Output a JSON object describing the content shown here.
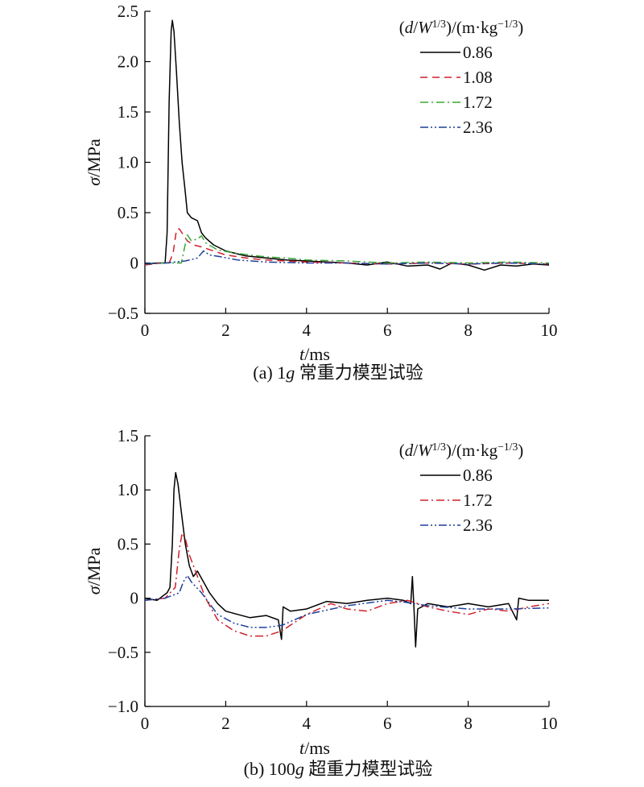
{
  "chart_data": [
    {
      "type": "line",
      "caption": "(a) 1g 常重力模型试验",
      "xlabel": "t/ms",
      "ylabel": "σ/MPa",
      "xlim": [
        0,
        10
      ],
      "ylim": [
        -0.5,
        2.5
      ],
      "xticks": [
        0,
        2,
        4,
        6,
        8,
        10
      ],
      "yticks": [
        -0.5,
        0,
        0.5,
        1.0,
        1.5,
        2.0,
        2.5
      ],
      "ytick_labels": [
        "−0.5",
        "0",
        "0.5",
        "1.0",
        "1.5",
        "2.0",
        "2.5"
      ],
      "legend_title": "(d/W1/3)/(m·kg−1/3)",
      "legend_position": "top-right",
      "series": [
        {
          "name": "0.86",
          "color": "#000000",
          "dash": "",
          "points": [
            [
              0,
              -0.01
            ],
            [
              0.3,
              0.0
            ],
            [
              0.5,
              0.0
            ],
            [
              0.55,
              0.3
            ],
            [
              0.6,
              1.6
            ],
            [
              0.65,
              2.3
            ],
            [
              0.68,
              2.41
            ],
            [
              0.72,
              2.3
            ],
            [
              0.78,
              1.9
            ],
            [
              0.85,
              1.4
            ],
            [
              0.92,
              1.0
            ],
            [
              1.0,
              0.7
            ],
            [
              1.05,
              0.5
            ],
            [
              1.15,
              0.45
            ],
            [
              1.3,
              0.42
            ],
            [
              1.4,
              0.3
            ],
            [
              1.5,
              0.25
            ],
            [
              1.7,
              0.18
            ],
            [
              2.0,
              0.12
            ],
            [
              2.5,
              0.07
            ],
            [
              3.0,
              0.05
            ],
            [
              3.5,
              0.03
            ],
            [
              4.0,
              0.02
            ],
            [
              5.0,
              0.0
            ],
            [
              5.5,
              -0.02
            ],
            [
              6.0,
              0.01
            ],
            [
              6.5,
              -0.03
            ],
            [
              7.0,
              -0.02
            ],
            [
              7.3,
              -0.06
            ],
            [
              7.6,
              0.0
            ],
            [
              8.0,
              -0.02
            ],
            [
              8.4,
              -0.07
            ],
            [
              8.8,
              -0.02
            ],
            [
              9.2,
              -0.03
            ],
            [
              9.6,
              -0.01
            ],
            [
              10.0,
              -0.02
            ]
          ]
        },
        {
          "name": "1.08",
          "color": "#d0202a",
          "dash": "9,6",
          "points": [
            [
              0,
              -0.02
            ],
            [
              0.4,
              0.0
            ],
            [
              0.6,
              0.0
            ],
            [
              0.7,
              0.1
            ],
            [
              0.78,
              0.33
            ],
            [
              0.85,
              0.34
            ],
            [
              0.95,
              0.28
            ],
            [
              1.05,
              0.22
            ],
            [
              1.2,
              0.18
            ],
            [
              1.4,
              0.16
            ],
            [
              1.7,
              0.12
            ],
            [
              2.0,
              0.08
            ],
            [
              2.5,
              0.05
            ],
            [
              3.0,
              0.03
            ],
            [
              4.0,
              0.01
            ],
            [
              5.0,
              0.0
            ],
            [
              6.0,
              -0.01
            ],
            [
              7.0,
              0.0
            ],
            [
              8.0,
              -0.01
            ],
            [
              9.0,
              0.0
            ],
            [
              10.0,
              -0.01
            ]
          ]
        },
        {
          "name": "1.72",
          "color": "#3aa635",
          "dash": "10,4,2,4",
          "points": [
            [
              0,
              -0.01
            ],
            [
              0.5,
              0.0
            ],
            [
              0.9,
              0.0
            ],
            [
              0.98,
              0.15
            ],
            [
              1.05,
              0.28
            ],
            [
              1.15,
              0.22
            ],
            [
              1.3,
              0.24
            ],
            [
              1.4,
              0.27
            ],
            [
              1.5,
              0.2
            ],
            [
              1.8,
              0.13
            ],
            [
              2.2,
              0.1
            ],
            [
              2.6,
              0.08
            ],
            [
              3.0,
              0.06
            ],
            [
              3.5,
              0.05
            ],
            [
              4.0,
              0.03
            ],
            [
              5.0,
              0.02
            ],
            [
              6.0,
              0.0
            ],
            [
              7.0,
              0.01
            ],
            [
              8.0,
              0.0
            ],
            [
              9.0,
              0.01
            ],
            [
              10.0,
              0.0
            ]
          ]
        },
        {
          "name": "2.36",
          "color": "#1f3f9c",
          "dash": "10,3,2,3,2,3",
          "points": [
            [
              0,
              -0.01
            ],
            [
              0.5,
              0.0
            ],
            [
              1.0,
              0.02
            ],
            [
              1.3,
              0.05
            ],
            [
              1.45,
              0.12
            ],
            [
              1.6,
              0.08
            ],
            [
              1.9,
              0.06
            ],
            [
              2.3,
              0.03
            ],
            [
              3.0,
              0.01
            ],
            [
              4.0,
              0.0
            ],
            [
              5.0,
              0.0
            ],
            [
              6.0,
              -0.01
            ],
            [
              7.0,
              0.0
            ],
            [
              8.0,
              -0.01
            ],
            [
              9.0,
              0.0
            ],
            [
              10.0,
              -0.01
            ]
          ]
        }
      ]
    },
    {
      "type": "line",
      "caption": "(b) 100g 超重力模型试验",
      "xlabel": "t/ms",
      "ylabel": "σ/MPa",
      "xlim": [
        0,
        10
      ],
      "ylim": [
        -1.0,
        1.5
      ],
      "xticks": [
        0,
        2,
        4,
        6,
        8,
        10
      ],
      "yticks": [
        -1.0,
        -0.5,
        0,
        0.5,
        1.0,
        1.5
      ],
      "ytick_labels": [
        "−1.0",
        "−0.5",
        "0",
        "0.5",
        "1.0",
        "1.5"
      ],
      "legend_title": "(d/W1/3)/(m·kg−1/3)",
      "legend_position": "top-right",
      "series": [
        {
          "name": "0.86",
          "color": "#000000",
          "dash": "",
          "points": [
            [
              0,
              0.0
            ],
            [
              0.3,
              -0.02
            ],
            [
              0.55,
              0.05
            ],
            [
              0.62,
              0.1
            ],
            [
              0.68,
              0.5
            ],
            [
              0.72,
              1.0
            ],
            [
              0.76,
              1.16
            ],
            [
              0.82,
              1.05
            ],
            [
              0.9,
              0.8
            ],
            [
              1.0,
              0.5
            ],
            [
              1.1,
              0.3
            ],
            [
              1.2,
              0.2
            ],
            [
              1.3,
              0.25
            ],
            [
              1.45,
              0.15
            ],
            [
              1.6,
              0.05
            ],
            [
              1.8,
              -0.05
            ],
            [
              2.0,
              -0.12
            ],
            [
              2.3,
              -0.15
            ],
            [
              2.6,
              -0.18
            ],
            [
              3.0,
              -0.16
            ],
            [
              3.3,
              -0.2
            ],
            [
              3.38,
              -0.38
            ],
            [
              3.42,
              -0.08
            ],
            [
              3.6,
              -0.12
            ],
            [
              4.0,
              -0.1
            ],
            [
              4.5,
              -0.03
            ],
            [
              5.0,
              -0.05
            ],
            [
              5.5,
              -0.02
            ],
            [
              6.0,
              0.0
            ],
            [
              6.4,
              -0.02
            ],
            [
              6.58,
              -0.05
            ],
            [
              6.62,
              0.2
            ],
            [
              6.66,
              -0.1
            ],
            [
              6.7,
              -0.45
            ],
            [
              6.75,
              -0.1
            ],
            [
              7.0,
              -0.05
            ],
            [
              7.5,
              -0.08
            ],
            [
              8.0,
              -0.05
            ],
            [
              8.5,
              -0.08
            ],
            [
              9.0,
              -0.05
            ],
            [
              9.2,
              -0.2
            ],
            [
              9.25,
              0.0
            ],
            [
              9.5,
              -0.02
            ],
            [
              10.0,
              -0.02
            ]
          ]
        },
        {
          "name": "1.72",
          "color": "#d0202a",
          "dash": "10,4,2,4",
          "points": [
            [
              0,
              -0.02
            ],
            [
              0.5,
              0.0
            ],
            [
              0.75,
              0.1
            ],
            [
              0.85,
              0.45
            ],
            [
              0.92,
              0.6
            ],
            [
              1.0,
              0.55
            ],
            [
              1.1,
              0.4
            ],
            [
              1.3,
              0.2
            ],
            [
              1.5,
              0.0
            ],
            [
              1.8,
              -0.2
            ],
            [
              2.2,
              -0.3
            ],
            [
              2.6,
              -0.35
            ],
            [
              3.0,
              -0.35
            ],
            [
              3.4,
              -0.3
            ],
            [
              4.0,
              -0.15
            ],
            [
              4.6,
              -0.05
            ],
            [
              5.0,
              -0.1
            ],
            [
              5.5,
              -0.12
            ],
            [
              6.0,
              -0.05
            ],
            [
              6.5,
              -0.02
            ],
            [
              7.0,
              -0.08
            ],
            [
              7.5,
              -0.12
            ],
            [
              8.0,
              -0.15
            ],
            [
              8.5,
              -0.1
            ],
            [
              9.0,
              -0.12
            ],
            [
              9.5,
              -0.08
            ],
            [
              10.0,
              -0.05
            ]
          ]
        },
        {
          "name": "2.36",
          "color": "#1f3f9c",
          "dash": "10,3,2,3,2,3",
          "points": [
            [
              0,
              -0.02
            ],
            [
              0.5,
              0.0
            ],
            [
              0.85,
              0.05
            ],
            [
              0.95,
              0.15
            ],
            [
              1.05,
              0.21
            ],
            [
              1.15,
              0.15
            ],
            [
              1.4,
              0.05
            ],
            [
              1.8,
              -0.15
            ],
            [
              2.2,
              -0.23
            ],
            [
              2.6,
              -0.27
            ],
            [
              3.0,
              -0.27
            ],
            [
              3.4,
              -0.25
            ],
            [
              4.0,
              -0.15
            ],
            [
              5.0,
              -0.07
            ],
            [
              6.0,
              -0.02
            ],
            [
              6.5,
              -0.04
            ],
            [
              7.0,
              -0.07
            ],
            [
              8.0,
              -0.1
            ],
            [
              9.0,
              -0.1
            ],
            [
              10.0,
              -0.09
            ]
          ]
        }
      ]
    }
  ]
}
